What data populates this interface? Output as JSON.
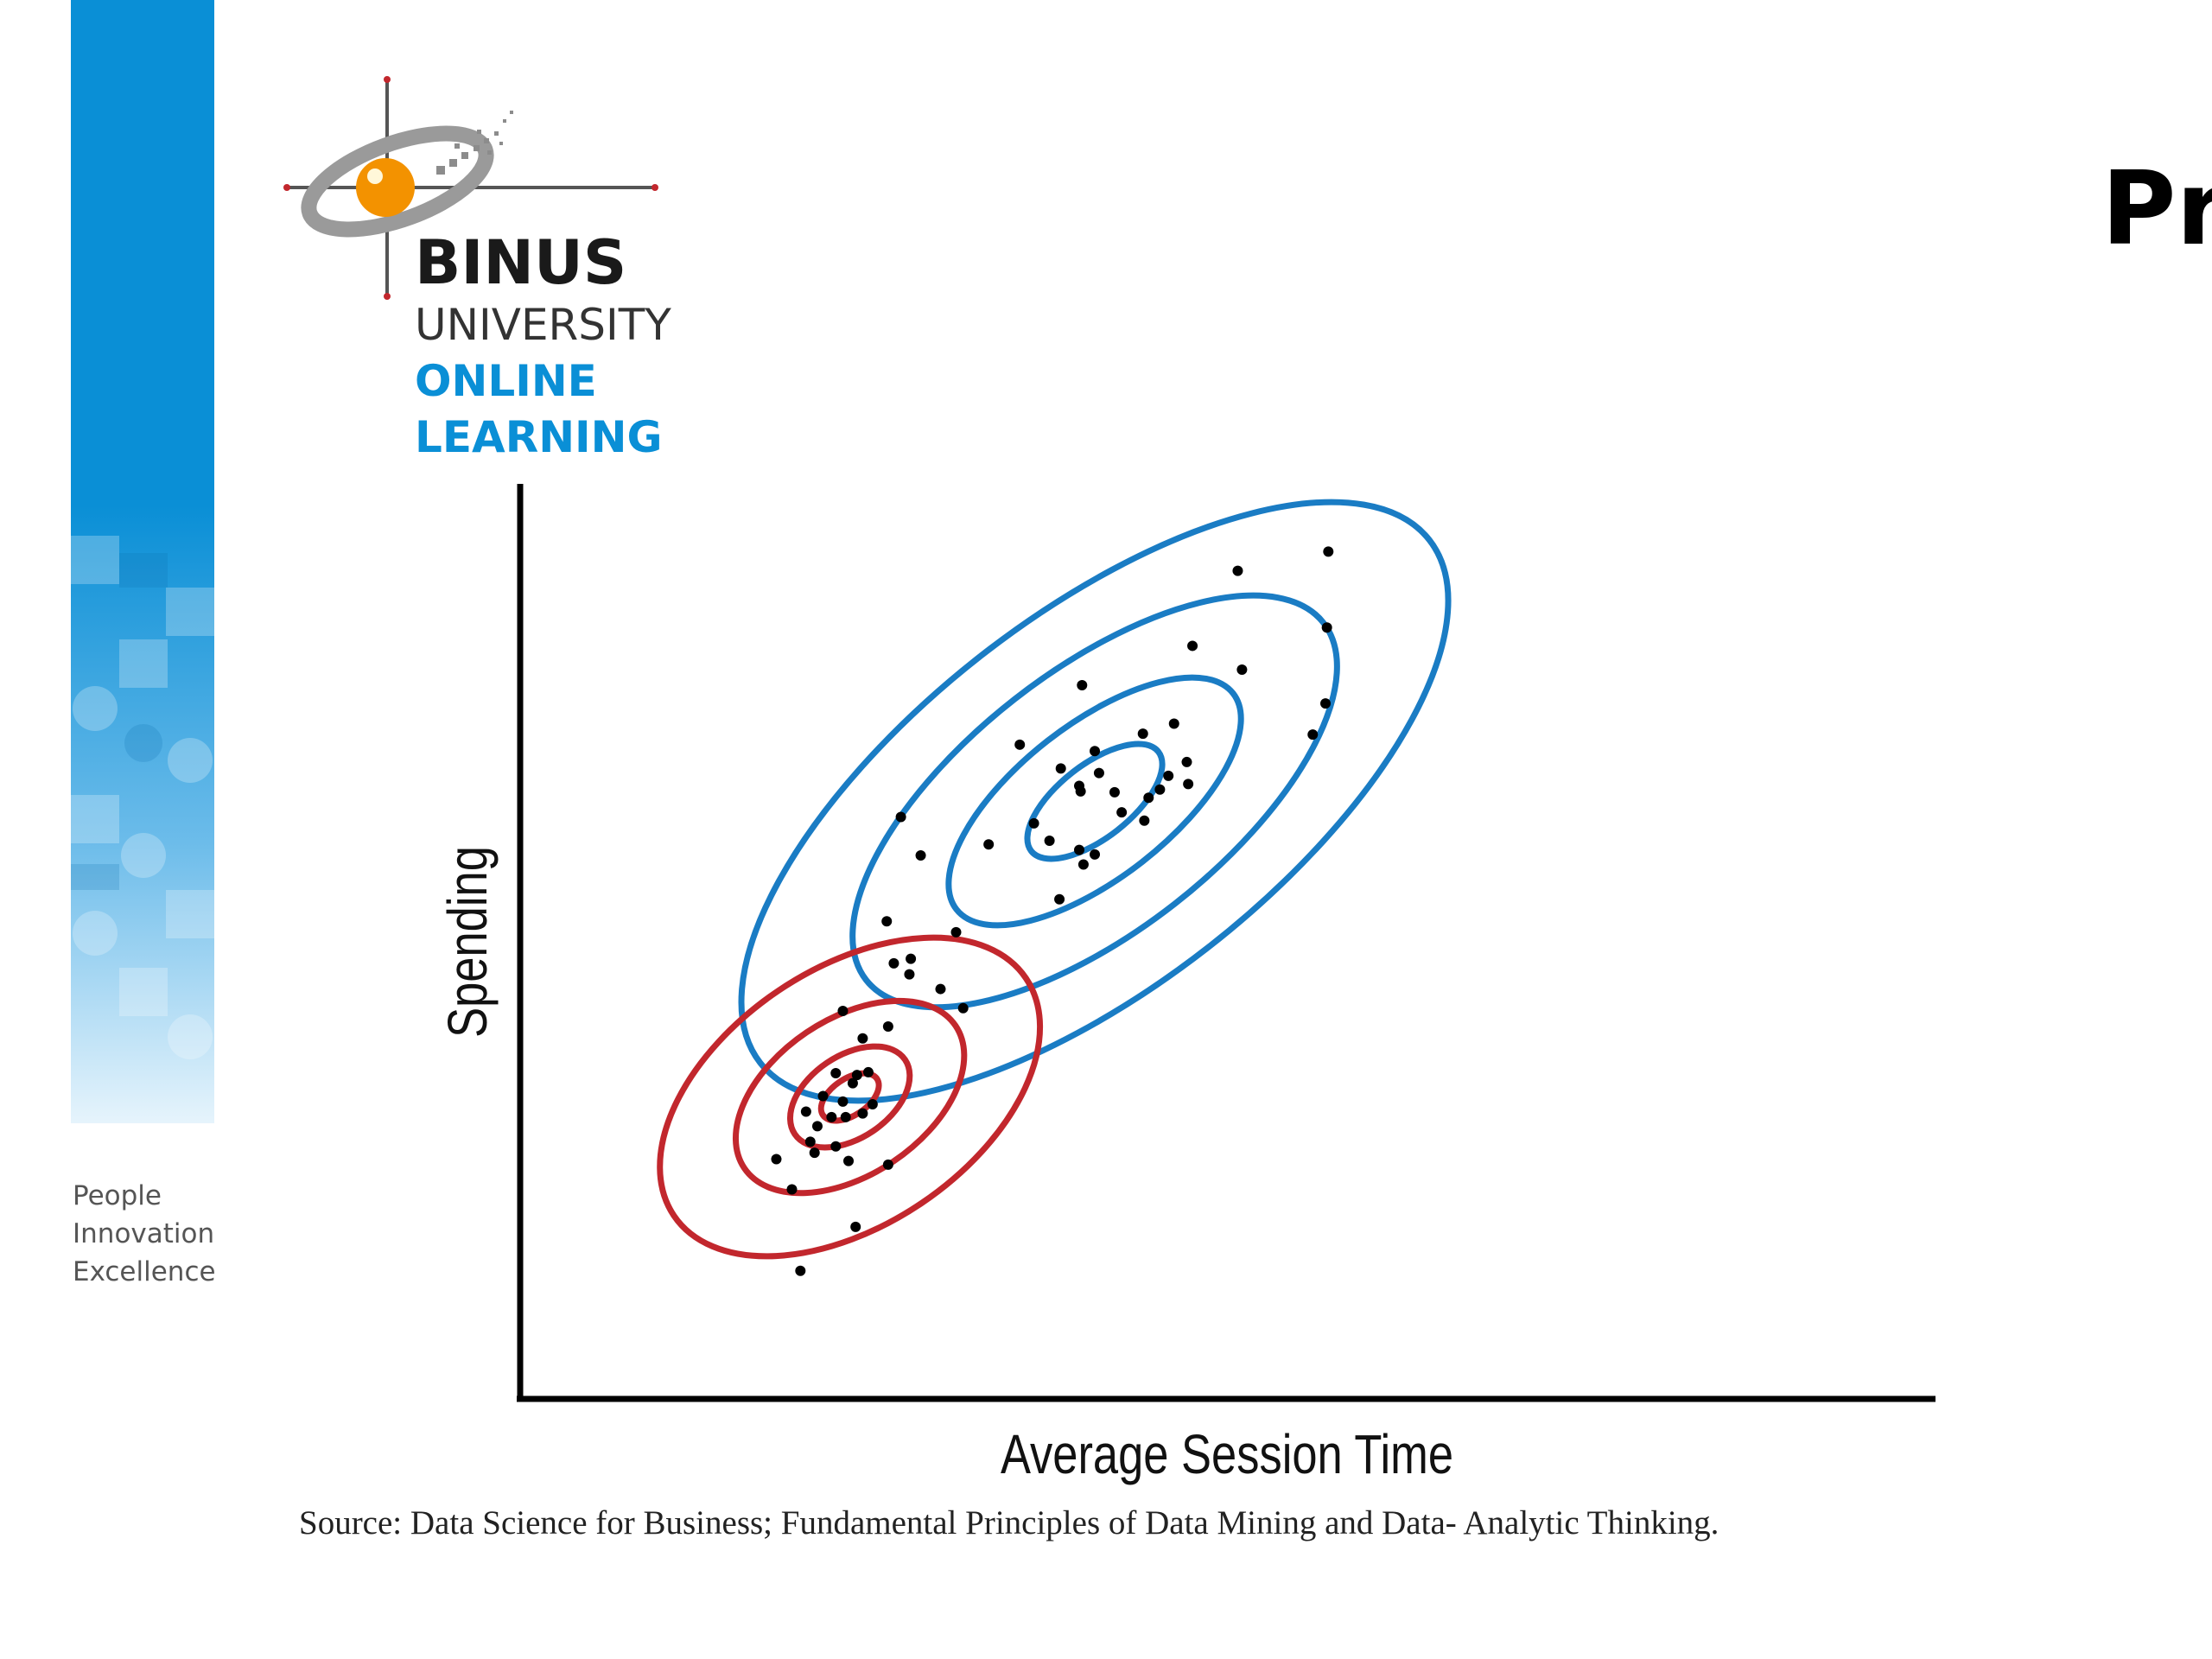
{
  "branding": {
    "logo_lines": [
      "BINUS",
      "UNIVERSITY",
      "ONLINE",
      "LEARNING"
    ],
    "tagline": [
      "People",
      "Innovation",
      "Excellence"
    ],
    "accent_blue": "#0a8fd6",
    "accent_orange": "#f39200"
  },
  "slide": {
    "title_fragment": "Pr"
  },
  "chart_data": {
    "type": "scatter",
    "title": "",
    "xlabel": "Average Session Time",
    "ylabel": "Spending",
    "xlim": [
      0,
      100
    ],
    "ylim": [
      0,
      100
    ],
    "grid": false,
    "clusters": [
      {
        "color": "#1a7cc4",
        "center": [
          40.6,
          65.3
        ],
        "contours": [
          {
            "rx": 5.7,
            "ry": 4.0
          },
          {
            "rx": 12.4,
            "ry": 8.4
          },
          {
            "rx": 20.5,
            "ry": 14.2
          },
          {
            "rx": 30.0,
            "ry": 20.2
          }
        ],
        "rotation_deg": -38,
        "points": [
          [
            40.6,
            70.8
          ],
          [
            47.2,
            67.2
          ],
          [
            46.2,
            73.8
          ],
          [
            50.7,
            90.5
          ],
          [
            44.0,
            72.7
          ],
          [
            45.2,
            66.6
          ],
          [
            42.5,
            64.1
          ],
          [
            40.9,
            68.4
          ],
          [
            38.2,
            68.9
          ],
          [
            35.3,
            71.5
          ],
          [
            36.3,
            62.9
          ],
          [
            33.1,
            60.6
          ],
          [
            37.4,
            61.0
          ],
          [
            39.5,
            60.0
          ],
          [
            45.8,
            68.1
          ],
          [
            39.5,
            67.0
          ],
          [
            39.6,
            66.4
          ],
          [
            44.1,
            63.2
          ],
          [
            47.1,
            69.6
          ],
          [
            40.6,
            59.5
          ],
          [
            38.1,
            54.6
          ],
          [
            39.8,
            58.4
          ],
          [
            44.4,
            65.7
          ],
          [
            42.0,
            66.3
          ],
          [
            57.1,
            92.6
          ],
          [
            51.0,
            79.7
          ],
          [
            57.0,
            84.3
          ],
          [
            56.9,
            76.0
          ],
          [
            28.3,
            59.4
          ],
          [
            26.9,
            63.6
          ],
          [
            39.7,
            78.0
          ],
          [
            47.5,
            82.3
          ],
          [
            56.0,
            72.6
          ],
          [
            29.7,
            44.8
          ],
          [
            30.8,
            51.0
          ],
          [
            27.5,
            46.4
          ],
          [
            31.3,
            42.7
          ]
        ]
      },
      {
        "color": "#c2272d",
        "center": [
          23.3,
          33.0
        ],
        "contours": [
          {
            "rx": 2.3,
            "ry": 2.0
          },
          {
            "rx": 4.7,
            "ry": 4.5
          },
          {
            "rx": 9.0,
            "ry": 8.5
          },
          {
            "rx": 15.0,
            "ry": 14.0
          }
        ],
        "rotation_deg": -34,
        "points": [
          [
            23.5,
            34.5
          ],
          [
            22.8,
            32.5
          ],
          [
            24.2,
            31.2
          ],
          [
            22.0,
            30.8
          ],
          [
            23.8,
            35.4
          ],
          [
            22.3,
            35.6
          ],
          [
            24.9,
            32.2
          ],
          [
            21.4,
            33.1
          ],
          [
            21.0,
            29.8
          ],
          [
            22.3,
            27.6
          ],
          [
            23.2,
            26.0
          ],
          [
            20.5,
            28.1
          ],
          [
            20.8,
            26.9
          ],
          [
            23.0,
            30.8
          ],
          [
            24.6,
            35.7
          ],
          [
            26.0,
            40.7
          ],
          [
            24.2,
            39.4
          ],
          [
            22.8,
            42.4
          ],
          [
            20.2,
            31.4
          ],
          [
            19.2,
            22.9
          ],
          [
            18.1,
            26.2
          ],
          [
            19.8,
            14.0
          ],
          [
            23.7,
            18.8
          ],
          [
            26.0,
            25.6
          ],
          [
            26.4,
            47.6
          ],
          [
            25.9,
            52.2
          ],
          [
            27.6,
            48.1
          ]
        ]
      }
    ],
    "source": "Source: Data Science for Business; Fundamental Principles of Data Mining and Data- Analytic Thinking."
  }
}
